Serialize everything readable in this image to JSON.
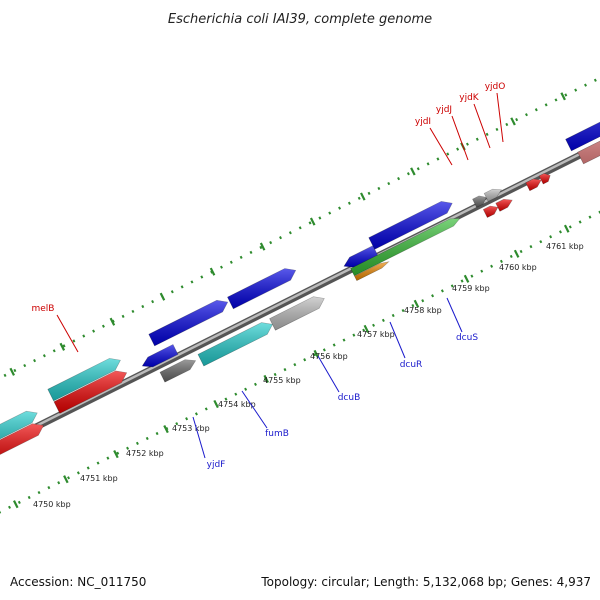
{
  "title": "Escherichia coli IAI39, complete genome",
  "footer": {
    "accession": "Accession: NC_011750",
    "summary": "Topology: circular; Length: 5,132,068 bp; Genes: 4,937"
  },
  "scale": {
    "unit": "kbp",
    "ticks": [
      "4750 kbp",
      "4751 kbp",
      "4752 kbp",
      "4753 kbp",
      "4754 kbp",
      "4755 kbp",
      "4756 kbp",
      "4757 kbp",
      "4758 kbp",
      "4759 kbp",
      "4760 kbp",
      "4761 kbp"
    ]
  },
  "genes_upper": [
    "melB",
    "yjdI",
    "yjdJ",
    "yjdK",
    "yjdO"
  ],
  "genes_lower": [
    "yjdF",
    "fumB",
    "dcuB",
    "dcuR",
    "dcuS"
  ],
  "colors": {
    "backbone": "#888888",
    "tick": "#2e8b2e",
    "gene_label_red": "#cc0000",
    "gene_label_blue": "#1a1acc",
    "blue": "#0000e0",
    "cyan": "#22cccc",
    "red": "#ee0000",
    "gray_dark": "#666666",
    "gray_light": "#bbbbbb",
    "green": "#33bb33",
    "orange": "#ee8800",
    "pink": "#ee8888"
  }
}
